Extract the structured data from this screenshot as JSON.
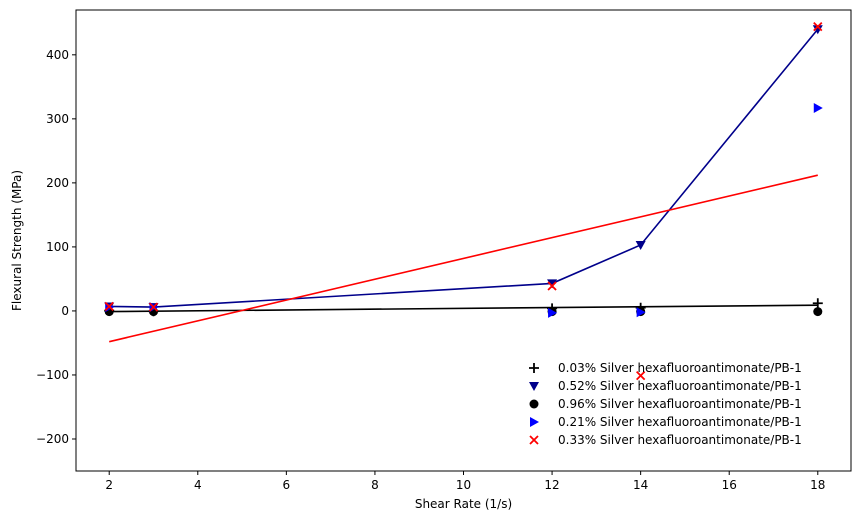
{
  "chart_data": {
    "type": "scatter",
    "xlabel": "Shear Rate (1/s)",
    "ylabel": "Flexural Strength (MPa)",
    "xlim": [
      1.25,
      18.75
    ],
    "ylim": [
      -250,
      470
    ],
    "xticks": [
      2,
      4,
      6,
      8,
      10,
      12,
      14,
      16,
      18
    ],
    "yticks": [
      -200,
      -100,
      0,
      100,
      200,
      300,
      400
    ],
    "xtick_labels": [
      "2",
      "4",
      "6",
      "8",
      "10",
      "12",
      "14",
      "16",
      "18"
    ],
    "ytick_labels": [
      "−200",
      "−100",
      "0",
      "100",
      "200",
      "300",
      "400"
    ],
    "legend_position": "lower-right",
    "series": [
      {
        "name": "0.03% Silver hexafluoroantimonate/PB-1",
        "marker": "plus",
        "color": "#000000",
        "x": [
          2,
          3,
          12,
          14,
          18
        ],
        "y": [
          0.5,
          -0.5,
          4,
          5,
          12
        ]
      },
      {
        "name": "0.52% Silver hexafluoroantimonate/PB-1",
        "marker": "triangle-down",
        "color": "#00008b",
        "x": [
          2,
          3,
          12,
          14,
          18
        ],
        "y": [
          7,
          6,
          43,
          103,
          440
        ]
      },
      {
        "name": "0.96% Silver hexafluoroantimonate/PB-1",
        "marker": "circle",
        "color": "#000000",
        "x": [
          2,
          3,
          12,
          14,
          18
        ],
        "y": [
          -1,
          -1,
          -1,
          -1,
          -1
        ]
      },
      {
        "name": "0.21% Silver hexafluoroantimonate/PB-1",
        "marker": "triangle-right",
        "color": "#0000ff",
        "x": [
          2,
          3,
          12,
          14,
          18
        ],
        "y": [
          6,
          6,
          -3,
          -2,
          317
        ]
      },
      {
        "name": "0.33% Silver hexafluoroantimonate/PB-1",
        "marker": "x",
        "color": "#ff0000",
        "x": [
          2,
          3,
          12,
          14,
          18
        ],
        "y": [
          7,
          6,
          39,
          -101,
          444
        ]
      }
    ],
    "lines": [
      {
        "label": "",
        "color": "#00008b",
        "x": [
          2,
          3,
          12,
          14,
          18
        ],
        "y": [
          7,
          6,
          43,
          103,
          440
        ]
      },
      {
        "label": "",
        "color": "#000000",
        "x": [
          2,
          18
        ],
        "y": [
          -1,
          9
        ]
      },
      {
        "label": "",
        "color": "#ff0000",
        "x": [
          2,
          18
        ],
        "y": [
          -48,
          212
        ]
      }
    ]
  }
}
